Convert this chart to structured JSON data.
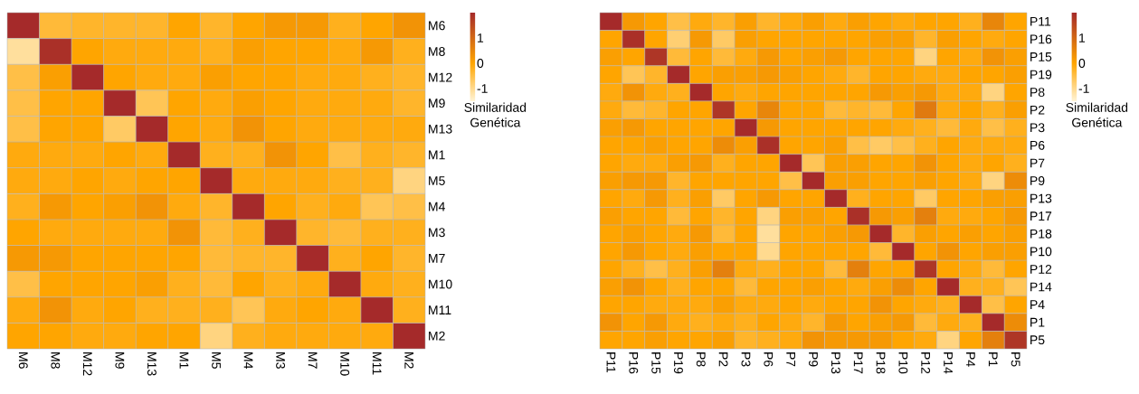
{
  "chart_data": [
    {
      "type": "heatmap",
      "categories": [
        "M6",
        "M8",
        "M12",
        "M9",
        "M13",
        "M1",
        "M5",
        "M4",
        "M3",
        "M7",
        "M10",
        "M11",
        "M2"
      ],
      "y_categories": [
        "M6",
        "M8",
        "M12",
        "M9",
        "M13",
        "M1",
        "M5",
        "M4",
        "M3",
        "M7",
        "M10",
        "M11",
        "M2"
      ],
      "cells": [
        [
          2.0,
          -0.4,
          -0.3,
          -0.3,
          -0.3,
          0,
          -0.3,
          0,
          0.2,
          0.2,
          -0.2,
          0,
          0.3
        ],
        [
          -1.1,
          1.9,
          0,
          -0.1,
          -0.1,
          -0.1,
          -0.2,
          0.1,
          0,
          0,
          -0.1,
          0.2,
          -0.2
        ],
        [
          -0.5,
          0.1,
          2.0,
          0,
          -0.1,
          -0.1,
          0.1,
          0,
          0,
          -0.1,
          -0.1,
          -0.2,
          -0.3
        ],
        [
          -0.5,
          0,
          0,
          2.0,
          -0.6,
          0,
          -0.1,
          0.1,
          0,
          -0.1,
          -0.1,
          -0.1,
          -0.3
        ],
        [
          -0.5,
          0,
          0,
          -0.7,
          2.0,
          0,
          -0.1,
          0.3,
          0,
          -0.1,
          -0.1,
          -0.1,
          -0.1
        ],
        [
          -0.1,
          -0.1,
          -0.1,
          0,
          -0.1,
          2.0,
          -0.2,
          -0.2,
          0.3,
          0,
          -0.5,
          -0.2,
          -0.3
        ],
        [
          -0.1,
          -0.1,
          0,
          -0.1,
          0,
          0,
          2.0,
          -0.1,
          -0.1,
          -0.1,
          -0.2,
          -0.2,
          -0.9
        ],
        [
          -0.2,
          0.2,
          0,
          0.1,
          0.3,
          -0.1,
          -0.3,
          2.0,
          0,
          -0.2,
          -0.1,
          -0.6,
          -0.5
        ],
        [
          0,
          -0.1,
          -0.1,
          -0.1,
          -0.1,
          0.3,
          -0.4,
          -0.2,
          2.0,
          -0.3,
          -0.4,
          -0.2,
          -0.2
        ],
        [
          0.2,
          0.2,
          0,
          0,
          0,
          0,
          -0.4,
          -0.3,
          -0.3,
          2.0,
          -0.2,
          0,
          -0.3
        ],
        [
          -0.5,
          0,
          0,
          0,
          0.1,
          -0.2,
          -0.4,
          0,
          -0.2,
          -0.1,
          2.0,
          -0.1,
          -0.2
        ],
        [
          -0.1,
          0.3,
          -0.1,
          0,
          -0.2,
          -0.2,
          -0.2,
          -0.6,
          -0.1,
          0,
          -0.1,
          2.0,
          -0.2
        ],
        [
          0,
          0,
          -0.1,
          -0.1,
          0,
          0,
          -0.9,
          -0.2,
          -0.1,
          -0.1,
          -0.1,
          -0.1,
          2.0
        ]
      ],
      "clim": [
        -1.5,
        2.0
      ],
      "cticks": [
        -1,
        0,
        1
      ],
      "clabel": "Similaridad Genética"
    },
    {
      "type": "heatmap",
      "categories": [
        "P11",
        "P16",
        "P15",
        "P19",
        "P8",
        "P2",
        "P3",
        "P6",
        "P7",
        "P9",
        "P13",
        "P17",
        "P18",
        "P10",
        "P12",
        "P14",
        "P4",
        "P1",
        "P5"
      ],
      "y_categories": [
        "P11",
        "P16",
        "P15",
        "P19",
        "P8",
        "P2",
        "P3",
        "P6",
        "P7",
        "P9",
        "P13",
        "P17",
        "P18",
        "P10",
        "P12",
        "P14",
        "P4",
        "P1",
        "P5"
      ],
      "cells": [
        [
          2.0,
          0.2,
          0,
          -0.5,
          -0.1,
          -0.3,
          0.1,
          -0.3,
          -0.1,
          0.1,
          -0.1,
          0.1,
          0,
          -0.1,
          0,
          0,
          -0.2,
          0.5,
          0
        ],
        [
          0,
          1.9,
          0,
          -0.8,
          0.2,
          -0.7,
          0.1,
          0,
          0,
          0,
          0,
          0,
          0.1,
          0.1,
          -0.3,
          0.1,
          0,
          -0.1,
          0
        ],
        [
          0.1,
          0,
          1.8,
          -0.4,
          0,
          -0.4,
          -0.1,
          0.2,
          0,
          0.1,
          0.2,
          0,
          0,
          0,
          -0.9,
          0,
          -0.1,
          0.3,
          0.1
        ],
        [
          0,
          -0.6,
          -0.3,
          2.0,
          0,
          0.1,
          0.1,
          0.2,
          0.1,
          0,
          -0.1,
          -0.3,
          0,
          0,
          -0.1,
          -0.1,
          0,
          0,
          0.1
        ],
        [
          -0.1,
          0.3,
          -0.1,
          -0.2,
          2.0,
          0,
          -0.1,
          0,
          0,
          0,
          0,
          0,
          0.2,
          0.1,
          0.2,
          -0.1,
          -0.1,
          -0.9,
          0
        ],
        [
          -0.1,
          -0.4,
          -0.3,
          0,
          0,
          1.8,
          0,
          0.5,
          0,
          0,
          -0.4,
          -0.3,
          -0.4,
          0,
          0.7,
          -0.1,
          0,
          -0.2,
          0.1
        ],
        [
          0.1,
          0.2,
          0,
          0,
          0,
          0,
          2.0,
          0.2,
          0,
          0,
          0,
          0,
          0,
          -0.1,
          -0.2,
          -0.4,
          -0.1,
          -0.5,
          -0.2
        ],
        [
          0,
          0,
          0.1,
          0,
          0,
          0.4,
          0.1,
          1.9,
          0,
          0,
          0.1,
          -0.5,
          -0.7,
          -0.5,
          -0.2,
          0,
          -0.1,
          -0.1,
          -0.1
        ],
        [
          0,
          -0.1,
          -0.1,
          0.1,
          0.2,
          -0.2,
          0,
          0,
          2.0,
          -0.6,
          0.1,
          0.1,
          0,
          0,
          0.3,
          0,
          -0.1,
          0,
          -0.2
        ],
        [
          0.1,
          0.2,
          0.2,
          -0.3,
          0,
          0,
          0,
          0,
          -0.5,
          2.0,
          0.1,
          0.1,
          0,
          0,
          0.1,
          0,
          -0.1,
          -0.9,
          0.4
        ],
        [
          0,
          -0.1,
          0.2,
          -0.2,
          0.1,
          -0.7,
          0,
          0.2,
          0,
          0,
          2.0,
          -0.2,
          0,
          0,
          -0.7,
          0,
          0,
          0.1,
          0.1
        ],
        [
          0.1,
          0,
          0,
          -0.4,
          0,
          -0.3,
          0,
          -0.9,
          0.1,
          0.1,
          0,
          1.9,
          0.2,
          0.1,
          0.6,
          -0.1,
          -0.1,
          0,
          0.2
        ],
        [
          0,
          0.1,
          0,
          -0.1,
          0.2,
          -0.4,
          0,
          -1.1,
          0,
          0,
          0.1,
          0.2,
          2.0,
          -0.3,
          0.1,
          0,
          0.1,
          0,
          0.1
        ],
        [
          0,
          0.2,
          0,
          -0.1,
          0.1,
          0,
          0,
          -1.0,
          0,
          0,
          0,
          0,
          -0.4,
          2.0,
          0,
          0.3,
          0,
          0.1,
          0.1
        ],
        [
          0,
          -0.2,
          -0.5,
          -0.2,
          0.1,
          0.6,
          -0.1,
          -0.2,
          0,
          0,
          -0.4,
          0.6,
          0,
          0,
          1.8,
          0,
          -0.1,
          -0.4,
          0
        ],
        [
          0.1,
          0.3,
          0,
          -0.2,
          0,
          0,
          -0.4,
          0,
          0,
          0.1,
          0,
          -0.1,
          0.1,
          0.4,
          0,
          2.0,
          -0.2,
          -0.2,
          -0.6
        ],
        [
          0,
          0,
          -0.1,
          -0.1,
          -0.1,
          0.1,
          -0.1,
          -0.1,
          0,
          -0.1,
          0,
          0,
          0.3,
          0,
          -0.1,
          -0.2,
          2.0,
          -0.5,
          0
        ],
        [
          0.3,
          0,
          0.2,
          -0.1,
          -0.2,
          -0.1,
          -0.2,
          0,
          -0.1,
          -0.3,
          0.2,
          0,
          0.1,
          0.2,
          -0.4,
          -0.1,
          -0.2,
          2.0,
          0.4
        ],
        [
          0,
          0,
          0.1,
          0,
          0,
          0.1,
          -0.3,
          -0.2,
          -0.1,
          0.3,
          0.2,
          0.2,
          0.2,
          0,
          -0.1,
          -0.9,
          0,
          0.6,
          1.8
        ]
      ],
      "clim": [
        -1.5,
        2.0
      ],
      "cticks": [
        -1,
        0,
        1
      ],
      "clabel": "Similaridad Genética"
    }
  ]
}
